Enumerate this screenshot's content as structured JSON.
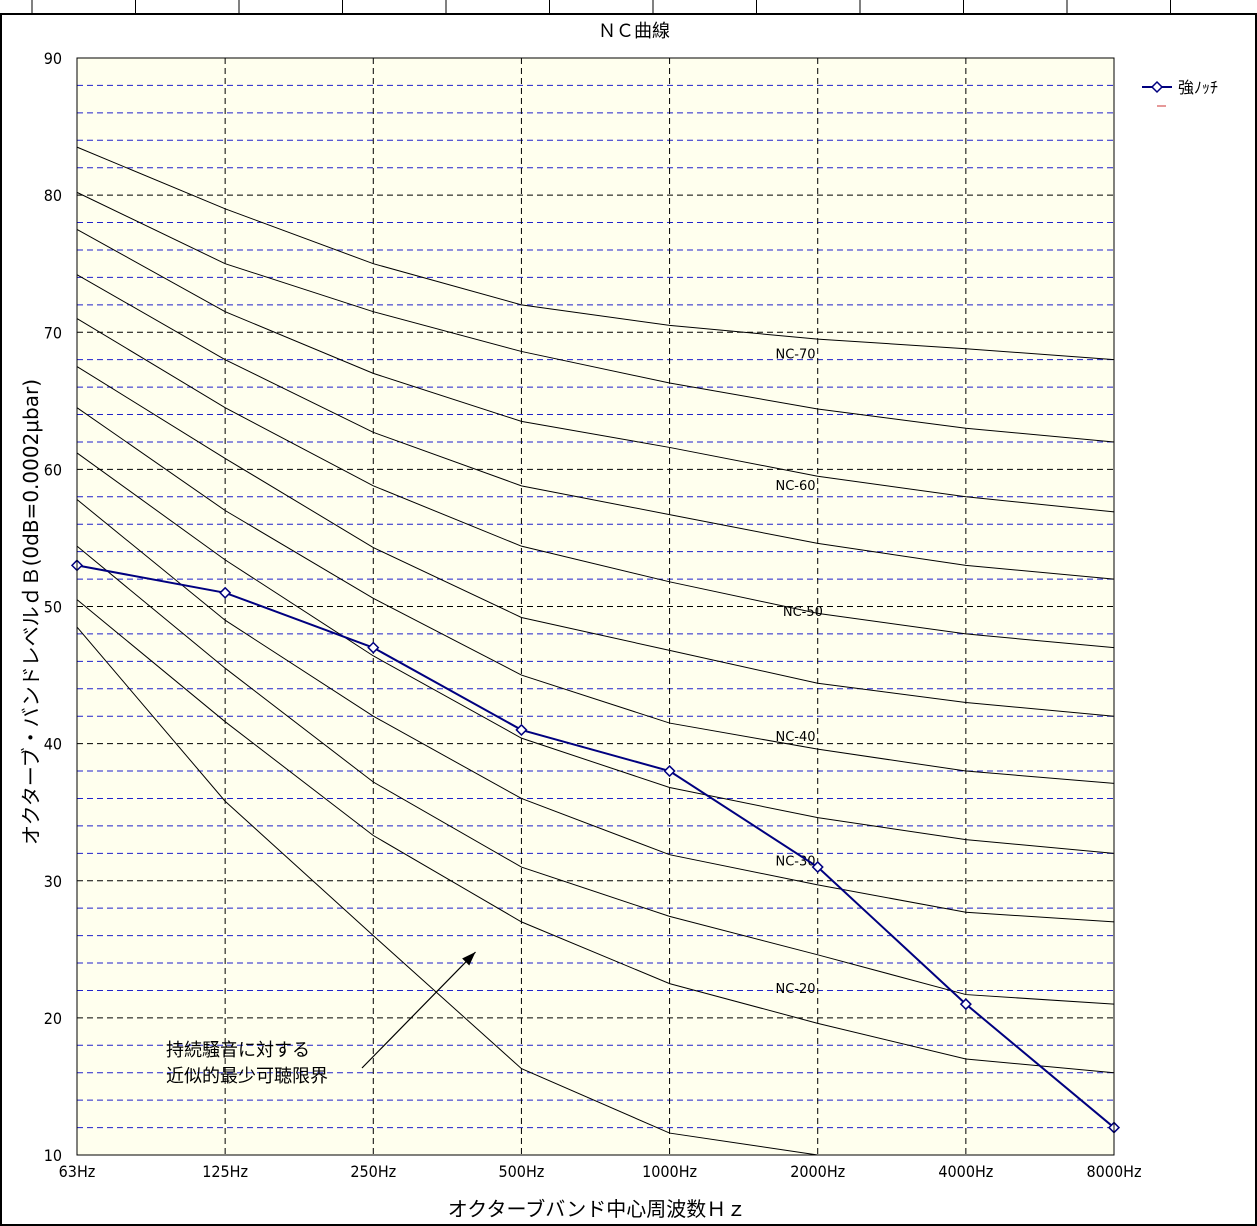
{
  "chart_data": {
    "type": "line",
    "title": "ＮＣ曲線",
    "xlabel": "オクターブバンド中心周波数Ｈｚ",
    "ylabel": "オクターブ・バンドレベルｄＢ(0dB=0.0002μbar)",
    "categories": [
      "63Hz",
      "125Hz",
      "250Hz",
      "500Hz",
      "1000Hz",
      "2000Hz",
      "4000Hz",
      "8000Hz"
    ],
    "ylim": [
      10,
      90
    ],
    "yticks": [
      10,
      20,
      30,
      40,
      50,
      60,
      70,
      80,
      90
    ],
    "grid": {
      "x": "dashed",
      "y": "dashed",
      "minor_y_color": "#2222cc"
    },
    "legend_position": "top-right",
    "series": [
      {
        "name": "強ﾉｯﾁ",
        "color": "#00007f",
        "marker": "diamond",
        "values": [
          53,
          51,
          47,
          41,
          38,
          31,
          21,
          12
        ]
      }
    ],
    "reference_curves": [
      {
        "label": "NC-70",
        "values": [
          83.5,
          79,
          75,
          72,
          70.5,
          69.5,
          68.8,
          68
        ]
      },
      {
        "label": "",
        "values": [
          80.2,
          75,
          71.5,
          68.6,
          66.3,
          64.4,
          63,
          62
        ]
      },
      {
        "label": "NC-60",
        "values": [
          77.5,
          71.5,
          67,
          63.5,
          61.6,
          59.5,
          58,
          56.9
        ]
      },
      {
        "label": "",
        "values": [
          74.2,
          68,
          62.7,
          58.8,
          56.7,
          54.6,
          53,
          52
        ]
      },
      {
        "label": "NC-50",
        "values": [
          71,
          64.5,
          58.8,
          54.4,
          51.8,
          49.5,
          48,
          47
        ]
      },
      {
        "label": "",
        "values": [
          67.5,
          60.8,
          54.3,
          49.2,
          46.8,
          44.4,
          43,
          42
        ]
      },
      {
        "label": "NC-40",
        "values": [
          64.5,
          57,
          50.6,
          45,
          41.5,
          39.6,
          38,
          37.1
        ]
      },
      {
        "label": "",
        "values": [
          61.2,
          53.4,
          46.4,
          40.4,
          36.8,
          34.6,
          33,
          32
        ]
      },
      {
        "label": "NC-30",
        "values": [
          57.8,
          49,
          42,
          36,
          31.9,
          29.7,
          27.7,
          27
        ]
      },
      {
        "label": "",
        "values": [
          54.4,
          45.5,
          37.2,
          31,
          27.4,
          24.6,
          21.7,
          21
        ]
      },
      {
        "label": "NC-20",
        "values": [
          50.5,
          41.6,
          33.3,
          27,
          22.5,
          19.6,
          17,
          16
        ]
      },
      {
        "label": "",
        "values": [
          48.5,
          35.8,
          26,
          16.3,
          11.6,
          10,
          null,
          null
        ]
      }
    ],
    "curve_label_positions": [
      {
        "label": "NC-70",
        "x": 4.85,
        "y": 68.1
      },
      {
        "label": "NC-60",
        "x": 4.85,
        "y": 58.5
      },
      {
        "label": "NC-50",
        "x": 4.9,
        "y": 49.3
      },
      {
        "label": "NC-40",
        "x": 4.85,
        "y": 40.2
      },
      {
        "label": "NC-30",
        "x": 4.85,
        "y": 31.1
      },
      {
        "label": "NC-20",
        "x": 4.85,
        "y": 21.8
      }
    ],
    "annotation": {
      "lines": [
        "持続騒音に対する",
        "近似的最少可聴限界"
      ],
      "arrow_target": {
        "x": 2.69,
        "y": 24.8
      }
    }
  }
}
